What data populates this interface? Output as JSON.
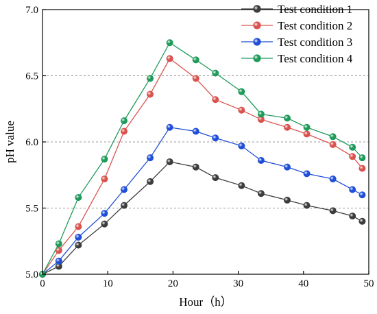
{
  "chart_data": {
    "type": "line",
    "title": "",
    "xlabel": "Hour（h）",
    "ylabel": "pH value",
    "xlim": [
      0,
      50
    ],
    "ylim": [
      5.0,
      7.0
    ],
    "x_ticks": [
      0,
      10,
      20,
      30,
      40,
      50
    ],
    "y_ticks": [
      5.0,
      5.5,
      6.0,
      6.5,
      7.0
    ],
    "x_tick_labels": [
      "0",
      "10",
      "20",
      "30",
      "40",
      "50"
    ],
    "y_tick_labels": [
      "5.0",
      "5.5",
      "6.0",
      "6.5",
      "7.0"
    ],
    "grid": "horizontal dashed lines",
    "legend_position": "top-right",
    "x": [
      0,
      2.5,
      5.5,
      9.5,
      12.5,
      16.5,
      19.5,
      23.5,
      26.5,
      30.5,
      33.5,
      37.5,
      40.5,
      44.5,
      47.5,
      49
    ],
    "series": [
      {
        "name": "Test condition 1",
        "color": "#3c3c3c",
        "values": [
          5.0,
          5.06,
          5.22,
          5.38,
          5.52,
          5.7,
          5.85,
          5.81,
          5.73,
          5.67,
          5.61,
          5.56,
          5.52,
          5.48,
          5.44,
          5.4
        ]
      },
      {
        "name": "Test condition 2",
        "color": "#d9534f",
        "values": [
          5.0,
          5.18,
          5.36,
          5.72,
          6.08,
          6.36,
          6.63,
          6.48,
          6.32,
          6.24,
          6.17,
          6.11,
          6.06,
          5.98,
          5.89,
          5.8
        ]
      },
      {
        "name": "Test condition 3",
        "color": "#1f4fd8",
        "values": [
          5.0,
          5.1,
          5.28,
          5.46,
          5.64,
          5.88,
          6.11,
          6.08,
          6.03,
          5.97,
          5.86,
          5.81,
          5.76,
          5.72,
          5.64,
          5.6
        ]
      },
      {
        "name": "Test condition 4",
        "color": "#1f9a5a",
        "values": [
          5.0,
          5.23,
          5.58,
          5.87,
          6.16,
          6.48,
          6.75,
          6.62,
          6.52,
          6.38,
          6.21,
          6.18,
          6.11,
          6.04,
          5.96,
          5.88
        ]
      }
    ]
  }
}
